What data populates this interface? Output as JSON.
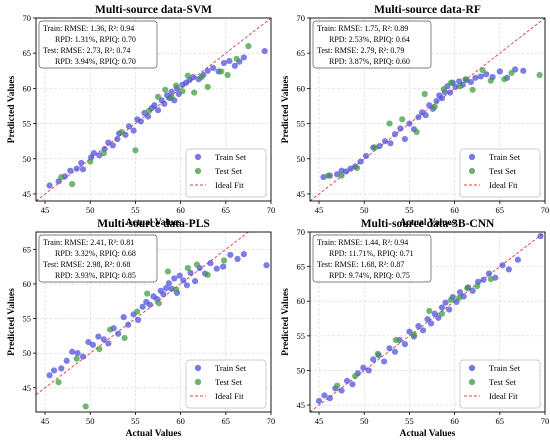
{
  "colors": {
    "train": "#4b4bdc",
    "test": "#3a9a3a",
    "ideal": "#e03c3c",
    "grid": "#cfcfcf"
  },
  "chart_data": [
    {
      "type": "scatter",
      "title": "Multi-source data-SVM",
      "xlabel": "Actual Values",
      "ylabel": "Predicted Values",
      "xlim": [
        44,
        70
      ],
      "ylim": [
        44,
        70
      ],
      "xticks": [
        "45",
        "50",
        "55",
        "60",
        "65",
        "70"
      ],
      "yticks": [
        "45",
        "50",
        "55",
        "60",
        "65",
        "70"
      ],
      "metrics": [
        "Train: RMSE: 1.36, R²: 0.94",
        "RPD: 1.31%, RPIQ: 0.70",
        "Test: RMSE: 2.73, R²: 0.74",
        "RPD: 3.94%, RPIQ: 0.70"
      ],
      "legend": [
        "Train Set",
        "Test Set",
        "Ideal Fit"
      ],
      "legend_loc": "lower-right",
      "grid": true,
      "series": [
        {
          "name": "Train Set",
          "x": [
            45.5,
            46.5,
            47.2,
            47.8,
            48.5,
            49,
            49.2,
            50.1,
            50.4,
            51,
            51.6,
            52,
            52.5,
            53,
            53.2,
            53.9,
            54.3,
            54.8,
            55.2,
            55.6,
            56,
            56.4,
            56.8,
            57.1,
            57.5,
            57.9,
            58.2,
            58.5,
            58.8,
            59,
            59.3,
            59.6,
            59.8,
            60.2,
            60.6,
            61,
            61.4,
            62,
            62.5,
            63,
            63.6,
            64.2,
            64.8,
            65.4,
            66,
            66.5,
            67,
            69.3
          ],
          "y": [
            46.2,
            46.8,
            47.5,
            48.3,
            48.6,
            49.4,
            48.5,
            50.2,
            50.8,
            50.5,
            51.4,
            52.3,
            51.9,
            52.8,
            53.6,
            53.4,
            54.6,
            54,
            55.6,
            55.3,
            56.5,
            56,
            57.2,
            57.6,
            56.9,
            58.3,
            57.8,
            59,
            58.6,
            59.5,
            58.3,
            60,
            59.2,
            60.5,
            60.8,
            61.2,
            61.6,
            61.3,
            61.9,
            62.5,
            62.9,
            62.4,
            63.6,
            63.9,
            63.2,
            63.8,
            64.4,
            65.3
          ]
        },
        {
          "name": "Test Set",
          "x": [
            46.8,
            48,
            50,
            51.5,
            53.5,
            55,
            56.5,
            57.5,
            58.3,
            59,
            59.5,
            60.2,
            60.8,
            61.5,
            62.3,
            63,
            64.5,
            65.2,
            66.2,
            67.5
          ],
          "y": [
            47.4,
            46.4,
            49.6,
            50.8,
            53.8,
            51.2,
            56.8,
            58.8,
            59.8,
            58.8,
            60.4,
            59.6,
            61.8,
            59.4,
            61.6,
            60.2,
            62.4,
            61.9,
            64.2,
            66
          ]
        }
      ]
    },
    {
      "type": "scatter",
      "title": "Multi-source data-RF",
      "xlabel": "Actual Values",
      "ylabel": "Predicted Values",
      "xlim": [
        44,
        70
      ],
      "ylim": [
        44,
        70
      ],
      "xticks": [
        "45",
        "50",
        "55",
        "60",
        "65",
        "70"
      ],
      "yticks": [
        "45",
        "50",
        "55",
        "60",
        "65",
        "70"
      ],
      "metrics": [
        "Train: RMSE: 1.75, R²: 0.89",
        "RPD: 2.53%, RPIQ: 0.64",
        "Test: RMSE: 2.79, R²: 0.79",
        "RPD: 3.87%, RPIQ: 0.60"
      ],
      "legend": [
        "Train Set",
        "Test Set",
        "Ideal Fit"
      ],
      "legend_loc": "lower-right",
      "grid": true,
      "series": [
        {
          "name": "Train Set",
          "x": [
            45.5,
            46.2,
            47,
            47.5,
            48,
            48.5,
            49,
            49.6,
            50.2,
            51,
            51.7,
            52.3,
            52.9,
            53.4,
            54,
            54.5,
            55,
            55.5,
            56,
            56.4,
            56.8,
            57.2,
            57.6,
            58,
            58.3,
            58.6,
            58.9,
            59.2,
            59.5,
            59.8,
            60.1,
            60.5,
            60.9,
            61.3,
            61.8,
            62.3,
            62.9,
            63.5,
            64.2,
            65,
            65.8,
            66.7,
            67.6
          ],
          "y": [
            47.4,
            47.6,
            47.8,
            48.3,
            48.2,
            48.6,
            48.9,
            49.6,
            50.4,
            51.6,
            51.8,
            52.5,
            52.2,
            53.5,
            54.3,
            52.8,
            55,
            54.2,
            55.9,
            56.6,
            56.2,
            57.6,
            57.1,
            58.2,
            59,
            58.6,
            59.5,
            60.3,
            59.4,
            60.8,
            60.2,
            61,
            60.5,
            61.2,
            60.9,
            61.5,
            61.7,
            62,
            61.6,
            62.4,
            61.5,
            62.7,
            62.5
          ]
        },
        {
          "name": "Test Set",
          "x": [
            46,
            47.5,
            49.2,
            51.2,
            52.8,
            54.2,
            55.8,
            56.7,
            57.8,
            58.8,
            59.6,
            60.6,
            61.2,
            62,
            63.1,
            64,
            65.5,
            66.3,
            69.4
          ],
          "y": [
            47.6,
            47.6,
            48.7,
            51.6,
            55,
            55.6,
            53.8,
            59.2,
            57.4,
            59.9,
            60.8,
            60.3,
            61.3,
            59.8,
            62.6,
            61.1,
            61.3,
            62.2,
            61.9
          ]
        }
      ]
    },
    {
      "type": "scatter",
      "title": "Multi-source data-PLS",
      "xlabel": "Actual Values",
      "ylabel": "Predicted Values",
      "xlim": [
        44,
        70
      ],
      "ylim": [
        41.5,
        67.5
      ],
      "xticks": [
        "45",
        "50",
        "55",
        "60",
        "65",
        "70"
      ],
      "yticks": [
        "45",
        "50",
        "55",
        "60",
        "65"
      ],
      "metrics": [
        "Train: RMSE: 2.41, R²: 0.81",
        "RPD: 3.32%, RPIQ: 0.68",
        "Test: RMSE: 2.98, R²: 0.68",
        "RPD: 3.93%, RPIQ: 0.85"
      ],
      "legend": [
        "Train Set",
        "Test Set",
        "Ideal Fit"
      ],
      "legend_loc": "lower-right",
      "grid": true,
      "series": [
        {
          "name": "Train Set",
          "x": [
            45.5,
            46,
            46.8,
            47.4,
            48,
            48.6,
            49.2,
            49.8,
            50.3,
            50.9,
            51.5,
            52,
            52.6,
            53.1,
            53.7,
            54.2,
            54.8,
            55.3,
            55.8,
            56.2,
            56.6,
            57,
            57.4,
            57.8,
            58.1,
            58.4,
            58.7,
            59,
            59.3,
            59.6,
            59.9,
            60.3,
            60.7,
            61.1,
            61.6,
            62.1,
            62.7,
            63.3,
            64,
            64.7,
            65.5,
            66.3,
            67,
            69.5
          ],
          "y": [
            46.8,
            47.5,
            47.8,
            48.9,
            50.2,
            50,
            49.5,
            51.6,
            51.2,
            52.4,
            52,
            51.4,
            53.6,
            52.8,
            55.2,
            54.1,
            55.6,
            54.8,
            56.7,
            57.4,
            57,
            58.2,
            57.8,
            59,
            58.5,
            59.4,
            60.1,
            59.3,
            60.8,
            58.7,
            61.2,
            60.5,
            59.8,
            61.6,
            60.4,
            62.3,
            61.5,
            63,
            62.2,
            62.5,
            64.2,
            63.6,
            64.3,
            62.7
          ]
        },
        {
          "name": "Test Set",
          "x": [
            46.5,
            48.5,
            49.5,
            51,
            52.2,
            53.8,
            55.2,
            56.3,
            57.6,
            58.6,
            59.5,
            60.8,
            61.8,
            63,
            64.8
          ],
          "y": [
            45.8,
            49.2,
            42.3,
            50.6,
            53.4,
            52.2,
            56,
            58.6,
            57.2,
            61.8,
            59.2,
            62.3,
            62.8,
            61.3,
            63.4
          ]
        }
      ]
    },
    {
      "type": "scatter",
      "title": "Multi-source data-3B-CNN",
      "xlabel": "Actual Values",
      "ylabel": "Predicted Values",
      "xlim": [
        44,
        70
      ],
      "ylim": [
        44,
        70
      ],
      "xticks": [
        "45",
        "50",
        "55",
        "60",
        "65",
        "70"
      ],
      "yticks": [
        "45",
        "50",
        "55",
        "60",
        "65",
        "70"
      ],
      "metrics": [
        "Train: RMSE: 1.44, R²: 0.94",
        "RPD: 11.71%, RPIQ: 0.71",
        "Test: RMSE: 1.68, R²: 0.87",
        "RPD: 9.74%, RPIQ: 0.75"
      ],
      "legend": [
        "Train Set",
        "Test Set",
        "Ideal Fit"
      ],
      "legend_loc": "lower-right",
      "grid": true,
      "series": [
        {
          "name": "Train Set",
          "x": [
            45,
            45.6,
            46.2,
            46.8,
            47.5,
            48.1,
            48.7,
            49.3,
            49.9,
            50.5,
            51,
            51.6,
            52.2,
            52.8,
            53.4,
            53.9,
            54.5,
            55,
            55.5,
            56,
            56.5,
            57,
            57.4,
            57.8,
            58.2,
            58.6,
            59,
            59.4,
            59.8,
            60.2,
            60.6,
            61,
            61.5,
            62,
            62.6,
            63.2,
            63.8,
            64.5,
            65.3,
            66,
            67,
            69.5
          ],
          "y": [
            45.6,
            46.4,
            46,
            47.4,
            47.1,
            48.5,
            48,
            49.6,
            50.4,
            50,
            51.6,
            52.2,
            51.3,
            53.2,
            52.7,
            54.4,
            53.8,
            55.6,
            54.9,
            56.4,
            55.8,
            57.4,
            56.8,
            58.2,
            57.6,
            59.1,
            59.8,
            58.8,
            60.6,
            59.9,
            61.3,
            60.7,
            62,
            61.5,
            62.8,
            63.1,
            64,
            63.4,
            65.2,
            64.6,
            66,
            69.4
          ]
        },
        {
          "name": "Test Set",
          "x": [
            47,
            49,
            51.5,
            53.5,
            55.5,
            57.2,
            58.6,
            59.6,
            60.5,
            61.4,
            62.5,
            64
          ],
          "y": [
            47.8,
            49.2,
            52.4,
            54.4,
            55.2,
            58.6,
            58.2,
            60.2,
            60.5,
            61.9,
            62.2,
            63.2
          ]
        }
      ]
    }
  ]
}
